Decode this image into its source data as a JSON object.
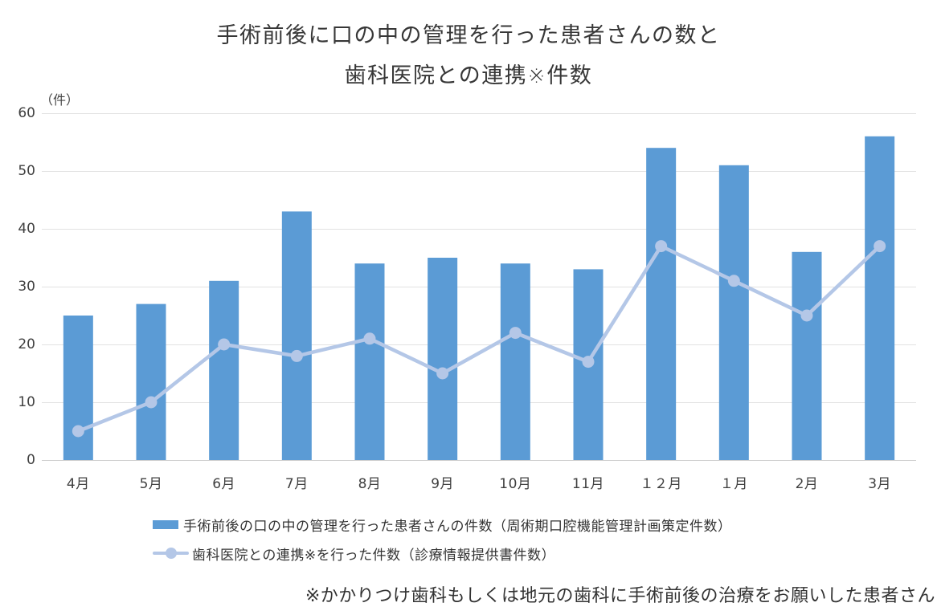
{
  "title": {
    "line1": "手術前後に口の中の管理を行った患者さんの数と",
    "line2": "歯科医院との連携※件数"
  },
  "y_axis": {
    "unit": "（件）",
    "ticks": [
      0,
      10,
      20,
      30,
      40,
      50,
      60
    ]
  },
  "chart_data": {
    "type": "bar+line",
    "title": "手術前後に口の中の管理を行った患者さんの数と歯科医院との連携※件数",
    "categories": [
      "4月",
      "5月",
      "6月",
      "7月",
      "8月",
      "9月",
      "10月",
      "11月",
      "１２月",
      "１月",
      "2月",
      "3月"
    ],
    "series": [
      {
        "name": "手術前後の口の中の管理を行った患者さんの件数（周術期口腔機能管理計画策定件数）",
        "type": "bar",
        "color": "#5B9BD5",
        "values": [
          25,
          27,
          31,
          43,
          34,
          35,
          34,
          33,
          54,
          51,
          36,
          56
        ]
      },
      {
        "name": "歯科医院との連携※を行った件数（診療情報提供書件数）",
        "type": "line",
        "color": "#B4C7E7",
        "values": [
          5,
          10,
          20,
          18,
          21,
          15,
          22,
          17,
          37,
          31,
          25,
          37
        ]
      }
    ],
    "xlabel": "",
    "ylabel": "（件）",
    "ylim": [
      0,
      60
    ],
    "grid": true,
    "legend_position": "bottom"
  },
  "colors": {
    "bar": "#5B9BD5",
    "line": "#B4C7E7",
    "gridline": "#E2E2E2",
    "axis_line": "#CFCFCF",
    "tick_text": "#404040"
  },
  "footnote": "※かかりつけ歯科もしくは地元の歯科に手術前後の治療をお願いした患者さん"
}
